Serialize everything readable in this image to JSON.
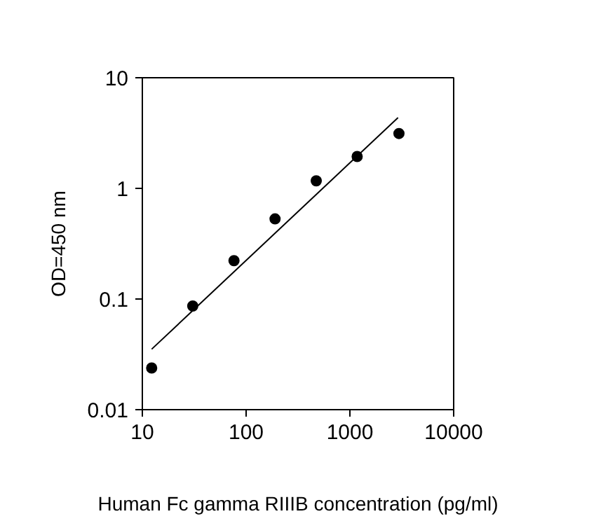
{
  "chart_data": {
    "type": "scatter",
    "xlabel": "Human Fc gamma RIIIB concentration (pg/ml)",
    "ylabel": "OD=450 nm",
    "log": "xy",
    "xlim": [
      10,
      10000
    ],
    "ylim": [
      0.01,
      10
    ],
    "xticks": [
      10,
      100,
      1000,
      10000
    ],
    "yticks": [
      0.01,
      0.1,
      1,
      10
    ],
    "grid": false,
    "marker": "circle",
    "series": [
      {
        "color": "#000000",
        "x": [
          12.3,
          30.6,
          76.4,
          190,
          474,
          1175,
          2970
        ],
        "values": [
          0.0238,
          0.0864,
          0.222,
          0.53,
          1.17,
          1.94,
          3.13
        ]
      },
      {
        "type": "line",
        "color": "#000000",
        "marker": "none",
        "line_style": "solid",
        "x": [
          12.3,
          2910
        ],
        "values": [
          0.0352,
          4.36
        ]
      }
    ]
  }
}
